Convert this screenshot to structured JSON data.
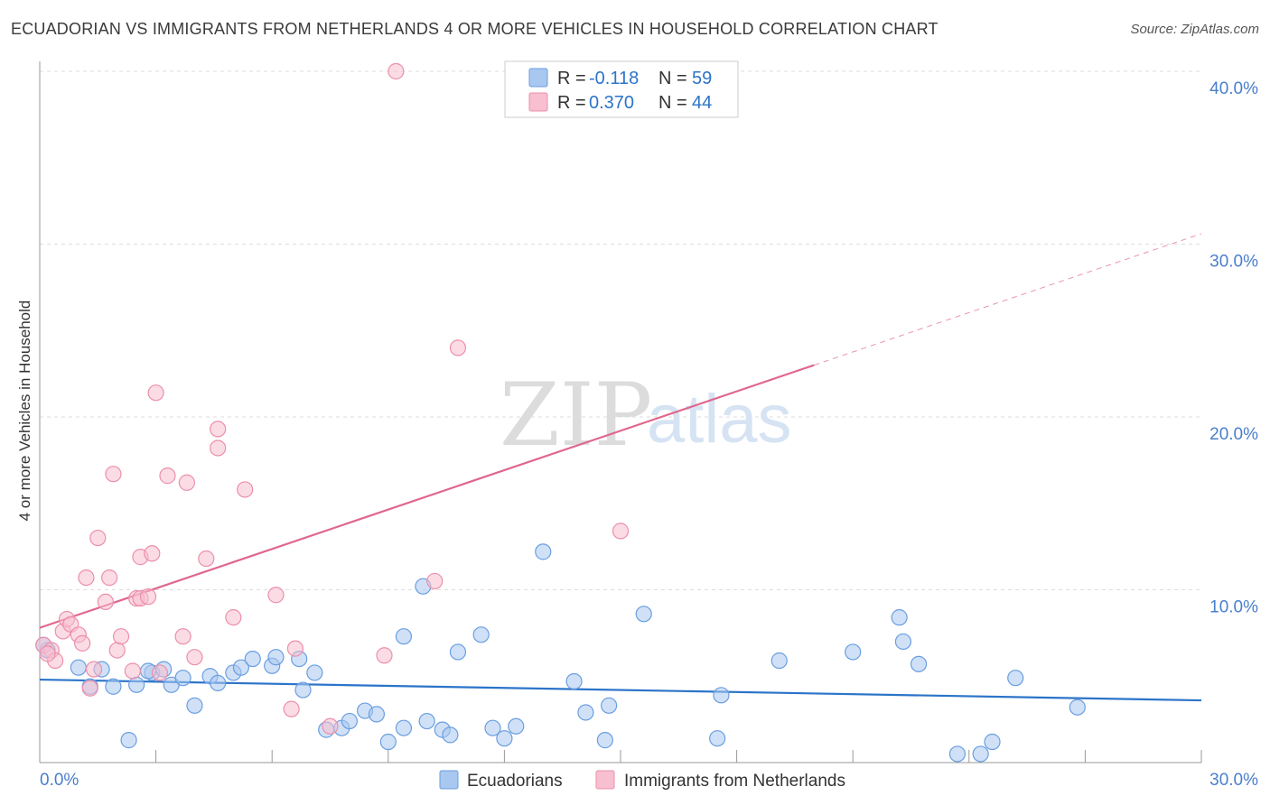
{
  "title": "ECUADORIAN VS IMMIGRANTS FROM NETHERLANDS 4 OR MORE VEHICLES IN HOUSEHOLD CORRELATION CHART",
  "source": "Source: ZipAtlas.com",
  "watermark": {
    "zip": "ZIP",
    "atlas": "atlas"
  },
  "colors": {
    "blue_fill": "#a9c8f0",
    "blue_stroke": "#6a9ee0",
    "blue_line": "#2b74c9",
    "pink_fill": "#f7bfd0",
    "pink_stroke": "#ec8fab",
    "pink_line": "#e0668d",
    "tick_text": "#4a7fcc",
    "grid": "#dddddd"
  },
  "legend": {
    "rows": [
      {
        "r_label": "R =",
        "r_value": "-0.118",
        "n_label": "N =",
        "n_value": "59",
        "series": "blue"
      },
      {
        "r_label": "R =",
        "r_value": "0.370",
        "n_label": "N =",
        "n_value": "44",
        "series": "pink"
      }
    ]
  },
  "chart_data": {
    "type": "scatter",
    "title": "ECUADORIAN VS IMMIGRANTS FROM NETHERLANDS 4 OR MORE VEHICLES IN HOUSEHOLD CORRELATION CHART",
    "xlabel": "",
    "ylabel": "4 or more Vehicles in Household",
    "xlim": [
      0,
      30
    ],
    "ylim": [
      0,
      40
    ],
    "x_tick_labels": [
      "0.0%",
      "30.0%"
    ],
    "y_ticks": [
      10,
      20,
      30,
      40
    ],
    "y_tick_labels": [
      "10.0%",
      "20.0%",
      "30.0%",
      "40.0%"
    ],
    "grid": true,
    "legend_position": "top-center",
    "series": [
      {
        "name": "Ecuadorians",
        "color": "blue",
        "points": [
          [
            0.2,
            6.5
          ],
          [
            1.0,
            5.5
          ],
          [
            1.3,
            4.4
          ],
          [
            1.6,
            5.4
          ],
          [
            1.9,
            4.4
          ],
          [
            2.3,
            1.3
          ],
          [
            2.5,
            4.5
          ],
          [
            2.9,
            5.2
          ],
          [
            3.2,
            5.4
          ],
          [
            3.4,
            4.5
          ],
          [
            3.7,
            4.9
          ],
          [
            4.0,
            3.3
          ],
          [
            4.4,
            5.0
          ],
          [
            4.6,
            4.6
          ],
          [
            5.0,
            5.2
          ],
          [
            5.2,
            5.5
          ],
          [
            5.5,
            6.0
          ],
          [
            6.0,
            5.6
          ],
          [
            6.1,
            6.1
          ],
          [
            6.7,
            6.0
          ],
          [
            6.8,
            4.2
          ],
          [
            7.1,
            5.2
          ],
          [
            7.4,
            1.9
          ],
          [
            7.8,
            2.0
          ],
          [
            8.0,
            2.4
          ],
          [
            8.4,
            3.0
          ],
          [
            8.7,
            2.8
          ],
          [
            9.0,
            1.2
          ],
          [
            9.4,
            2.0
          ],
          [
            9.4,
            7.3
          ],
          [
            9.9,
            10.2
          ],
          [
            10.0,
            2.4
          ],
          [
            10.4,
            1.9
          ],
          [
            10.6,
            1.6
          ],
          [
            10.8,
            6.4
          ],
          [
            11.4,
            7.4
          ],
          [
            11.7,
            2.0
          ],
          [
            12.0,
            1.4
          ],
          [
            12.3,
            2.1
          ],
          [
            13.0,
            12.2
          ],
          [
            13.8,
            4.7
          ],
          [
            14.1,
            2.9
          ],
          [
            14.6,
            1.3
          ],
          [
            14.7,
            3.3
          ],
          [
            15.6,
            8.6
          ],
          [
            17.5,
            1.4
          ],
          [
            17.6,
            3.9
          ],
          [
            19.1,
            5.9
          ],
          [
            21.0,
            6.4
          ],
          [
            22.2,
            8.4
          ],
          [
            22.3,
            7.0
          ],
          [
            22.7,
            5.7
          ],
          [
            23.7,
            0.5
          ],
          [
            24.3,
            0.5
          ],
          [
            24.6,
            1.2
          ],
          [
            25.2,
            4.9
          ],
          [
            26.8,
            3.2
          ],
          [
            0.1,
            6.8
          ],
          [
            2.8,
            5.3
          ]
        ],
        "trend": {
          "x": [
            0,
            30
          ],
          "y": [
            4.8,
            3.6
          ],
          "dashed_extension": false
        }
      },
      {
        "name": "Immigrants from Netherlands",
        "color": "pink",
        "points": [
          [
            0.1,
            6.8
          ],
          [
            0.3,
            6.5
          ],
          [
            0.4,
            5.9
          ],
          [
            0.6,
            7.6
          ],
          [
            0.7,
            8.3
          ],
          [
            0.8,
            8.0
          ],
          [
            1.0,
            7.4
          ],
          [
            1.1,
            6.9
          ],
          [
            1.2,
            10.7
          ],
          [
            1.3,
            4.3
          ],
          [
            1.4,
            5.4
          ],
          [
            1.5,
            13.0
          ],
          [
            1.7,
            9.3
          ],
          [
            1.8,
            10.7
          ],
          [
            1.9,
            16.7
          ],
          [
            2.0,
            6.5
          ],
          [
            2.1,
            7.3
          ],
          [
            2.4,
            5.3
          ],
          [
            2.5,
            9.5
          ],
          [
            2.6,
            9.5
          ],
          [
            2.6,
            11.9
          ],
          [
            2.8,
            9.6
          ],
          [
            2.9,
            12.1
          ],
          [
            3.0,
            21.4
          ],
          [
            3.1,
            5.2
          ],
          [
            3.3,
            16.6
          ],
          [
            3.7,
            7.3
          ],
          [
            3.8,
            16.2
          ],
          [
            4.0,
            6.1
          ],
          [
            4.3,
            11.8
          ],
          [
            4.6,
            19.3
          ],
          [
            4.6,
            18.2
          ],
          [
            5.0,
            8.4
          ],
          [
            5.3,
            15.8
          ],
          [
            6.1,
            9.7
          ],
          [
            6.5,
            3.1
          ],
          [
            6.6,
            6.6
          ],
          [
            7.5,
            2.1
          ],
          [
            8.9,
            6.2
          ],
          [
            9.2,
            40.0
          ],
          [
            10.2,
            10.5
          ],
          [
            10.8,
            24.0
          ],
          [
            15.0,
            13.4
          ],
          [
            0.2,
            6.3
          ]
        ],
        "trend": {
          "x": [
            0,
            20
          ],
          "y": [
            7.8,
            23.0
          ],
          "dashed_extension": {
            "x": [
              20,
              30
            ],
            "y": [
              23.0,
              30.6
            ]
          }
        }
      }
    ]
  }
}
